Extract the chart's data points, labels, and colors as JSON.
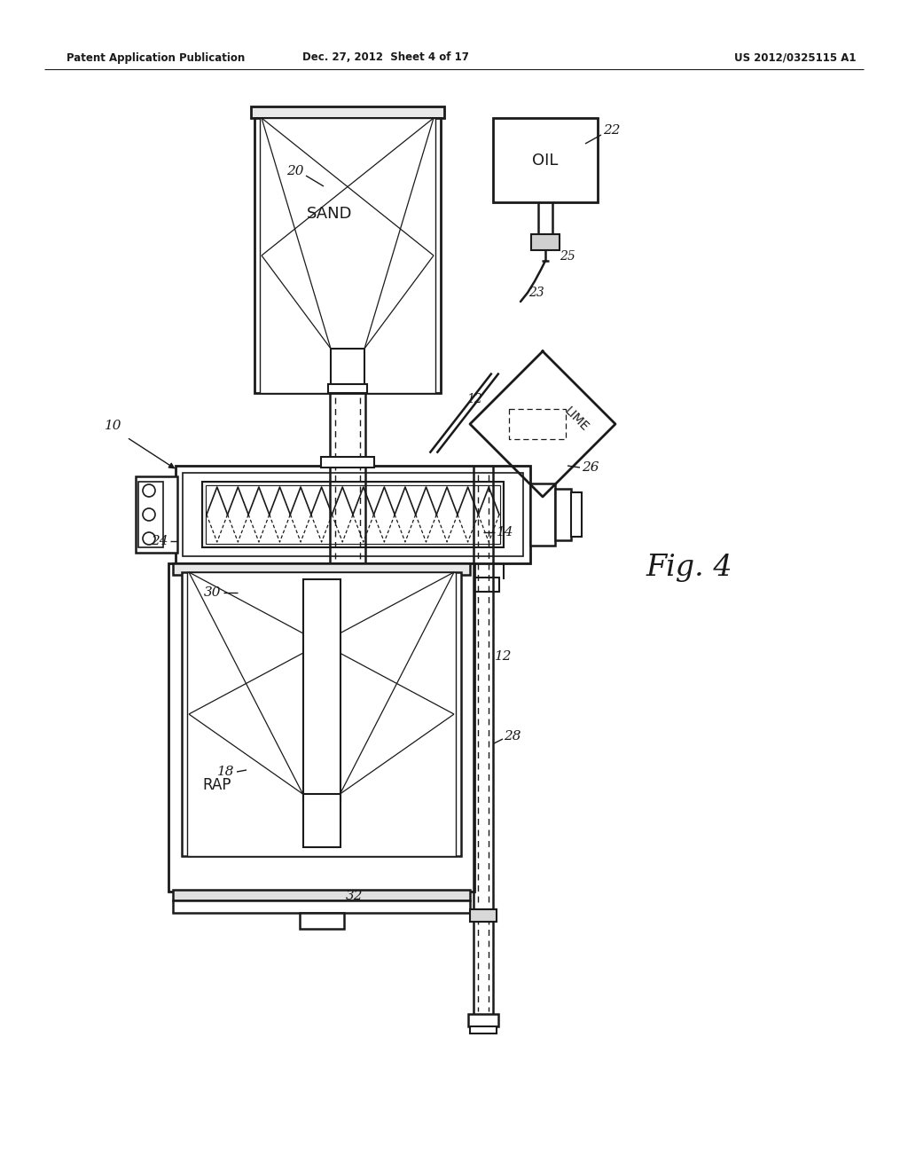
{
  "bg_color": "#ffffff",
  "line_color": "#1a1a1a",
  "header_left": "Patent Application Publication",
  "header_mid": "Dec. 27, 2012  Sheet 4 of 17",
  "header_right": "US 2012/0325115 A1"
}
